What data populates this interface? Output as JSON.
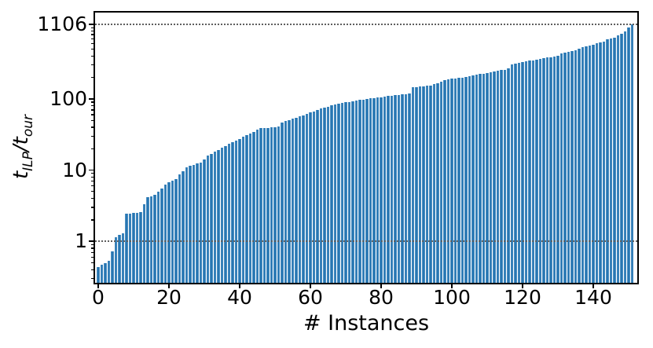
{
  "figure": {
    "xlabel": "# Instances",
    "ylabel": {
      "t1": "t",
      "s1": "ILP",
      "sep": "/",
      "t2": "t",
      "s2": "our"
    }
  },
  "chart_data": {
    "type": "bar",
    "title": "",
    "xlabel": "# Instances",
    "ylabel": "t_ILP/t_our",
    "yscale": "log",
    "n_instances": 152,
    "x_start_index": 0,
    "values": [
      0.44,
      0.47,
      0.5,
      0.53,
      0.72,
      1.15,
      1.22,
      1.3,
      2.45,
      2.47,
      2.5,
      2.52,
      2.55,
      3.3,
      4.2,
      4.3,
      4.45,
      5.0,
      5.5,
      6.3,
      6.8,
      7.1,
      7.4,
      8.8,
      9.6,
      10.9,
      11.4,
      11.9,
      12.4,
      12.9,
      14.0,
      15.9,
      17.0,
      18.2,
      19.3,
      20.5,
      21.7,
      23.2,
      24.5,
      26.0,
      27.5,
      29.5,
      31.0,
      32.5,
      34.0,
      37.5,
      38.5,
      39.0,
      39.3,
      39.6,
      40.0,
      40.5,
      46.0,
      48.5,
      50.5,
      52.5,
      54.0,
      56.5,
      59.0,
      61.5,
      64.0,
      67.0,
      70.0,
      73.0,
      75.0,
      78.0,
      81.0,
      84.0,
      86.5,
      88.0,
      89.5,
      91.0,
      92.5,
      94.0,
      96.0,
      98.0,
      100.0,
      101.5,
      103.0,
      104.5,
      106.0,
      108.0,
      109.5,
      111.0,
      112.5,
      114.0,
      115.5,
      116.5,
      118.0,
      145.0,
      147.0,
      149.0,
      151.0,
      153.0,
      155.0,
      161.0,
      165.0,
      174.0,
      181.0,
      188.0,
      192.0,
      195.0,
      198.0,
      200.0,
      203.0,
      207.0,
      213.0,
      219.0,
      223.0,
      225.0,
      228.0,
      238.0,
      242.0,
      248.0,
      252.0,
      258.0,
      270.0,
      308.0,
      313.0,
      322.0,
      328.0,
      336.0,
      345.0,
      350.0,
      355.0,
      365.0,
      371.0,
      380.0,
      385.0,
      395.0,
      405.0,
      430.0,
      447.0,
      455.0,
      466.0,
      486.0,
      507.0,
      532.0,
      541.0,
      555.0,
      580.0,
      605.0,
      621.0,
      632.0,
      688.0,
      698.0,
      716.0,
      780.0,
      827.0,
      885.0,
      1007.0,
      1106.0
    ],
    "max_value": 1106,
    "x_ticks": [
      0,
      20,
      40,
      60,
      80,
      100,
      120,
      140
    ],
    "y_ticks": [
      1,
      10,
      100,
      1106
    ],
    "y_tick_labels": [
      "1",
      "10",
      "100",
      "1106"
    ],
    "y_minor_ticks": [
      0.3,
      0.4,
      0.5,
      0.6,
      0.7,
      0.8,
      0.9,
      2,
      3,
      4,
      5,
      6,
      7,
      8,
      9,
      20,
      30,
      40,
      50,
      60,
      70,
      80,
      90,
      200,
      300,
      400,
      500,
      600,
      700,
      800,
      900,
      1000
    ],
    "reference_lines": [
      1,
      1106
    ],
    "xlim": [
      -0.9,
      152.4
    ],
    "ylim": [
      0.27,
      1630
    ],
    "grid": "horizontal dotted at y=1 and y=1106 only",
    "legend": null,
    "bar_color": "#2776b2",
    "bar_edge_color": "#6ba4cf",
    "grid_color": "#5f5f5f",
    "axis_color": "#000000"
  }
}
